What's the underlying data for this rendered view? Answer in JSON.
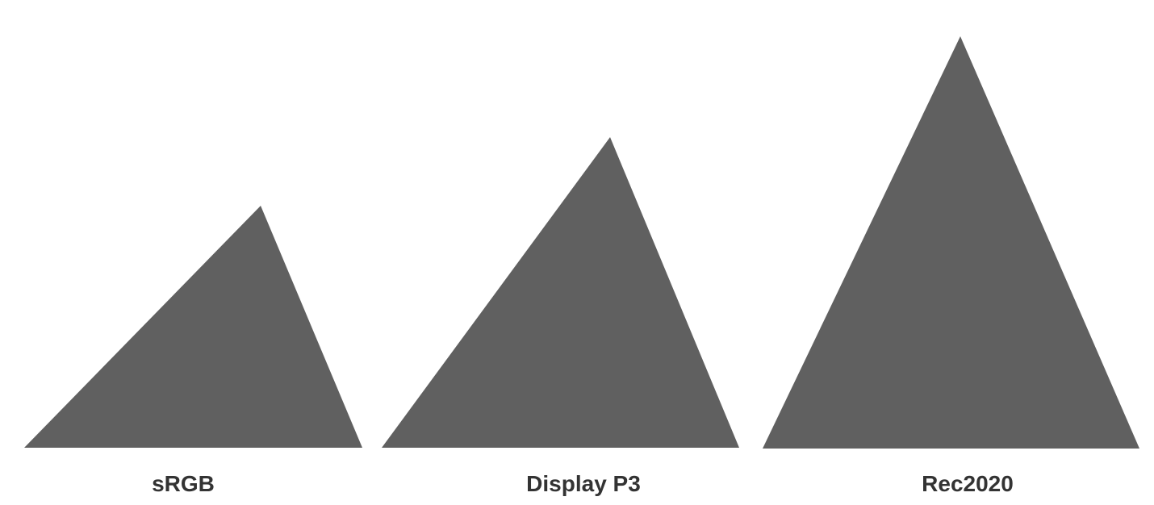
{
  "gamuts": [
    {
      "label": "sRGB"
    },
    {
      "label": "Display P3"
    },
    {
      "label": "Rec2020"
    }
  ],
  "colors": {
    "triangle_fill": "#606060",
    "label_text": "#333333",
    "background": "#ffffff"
  }
}
